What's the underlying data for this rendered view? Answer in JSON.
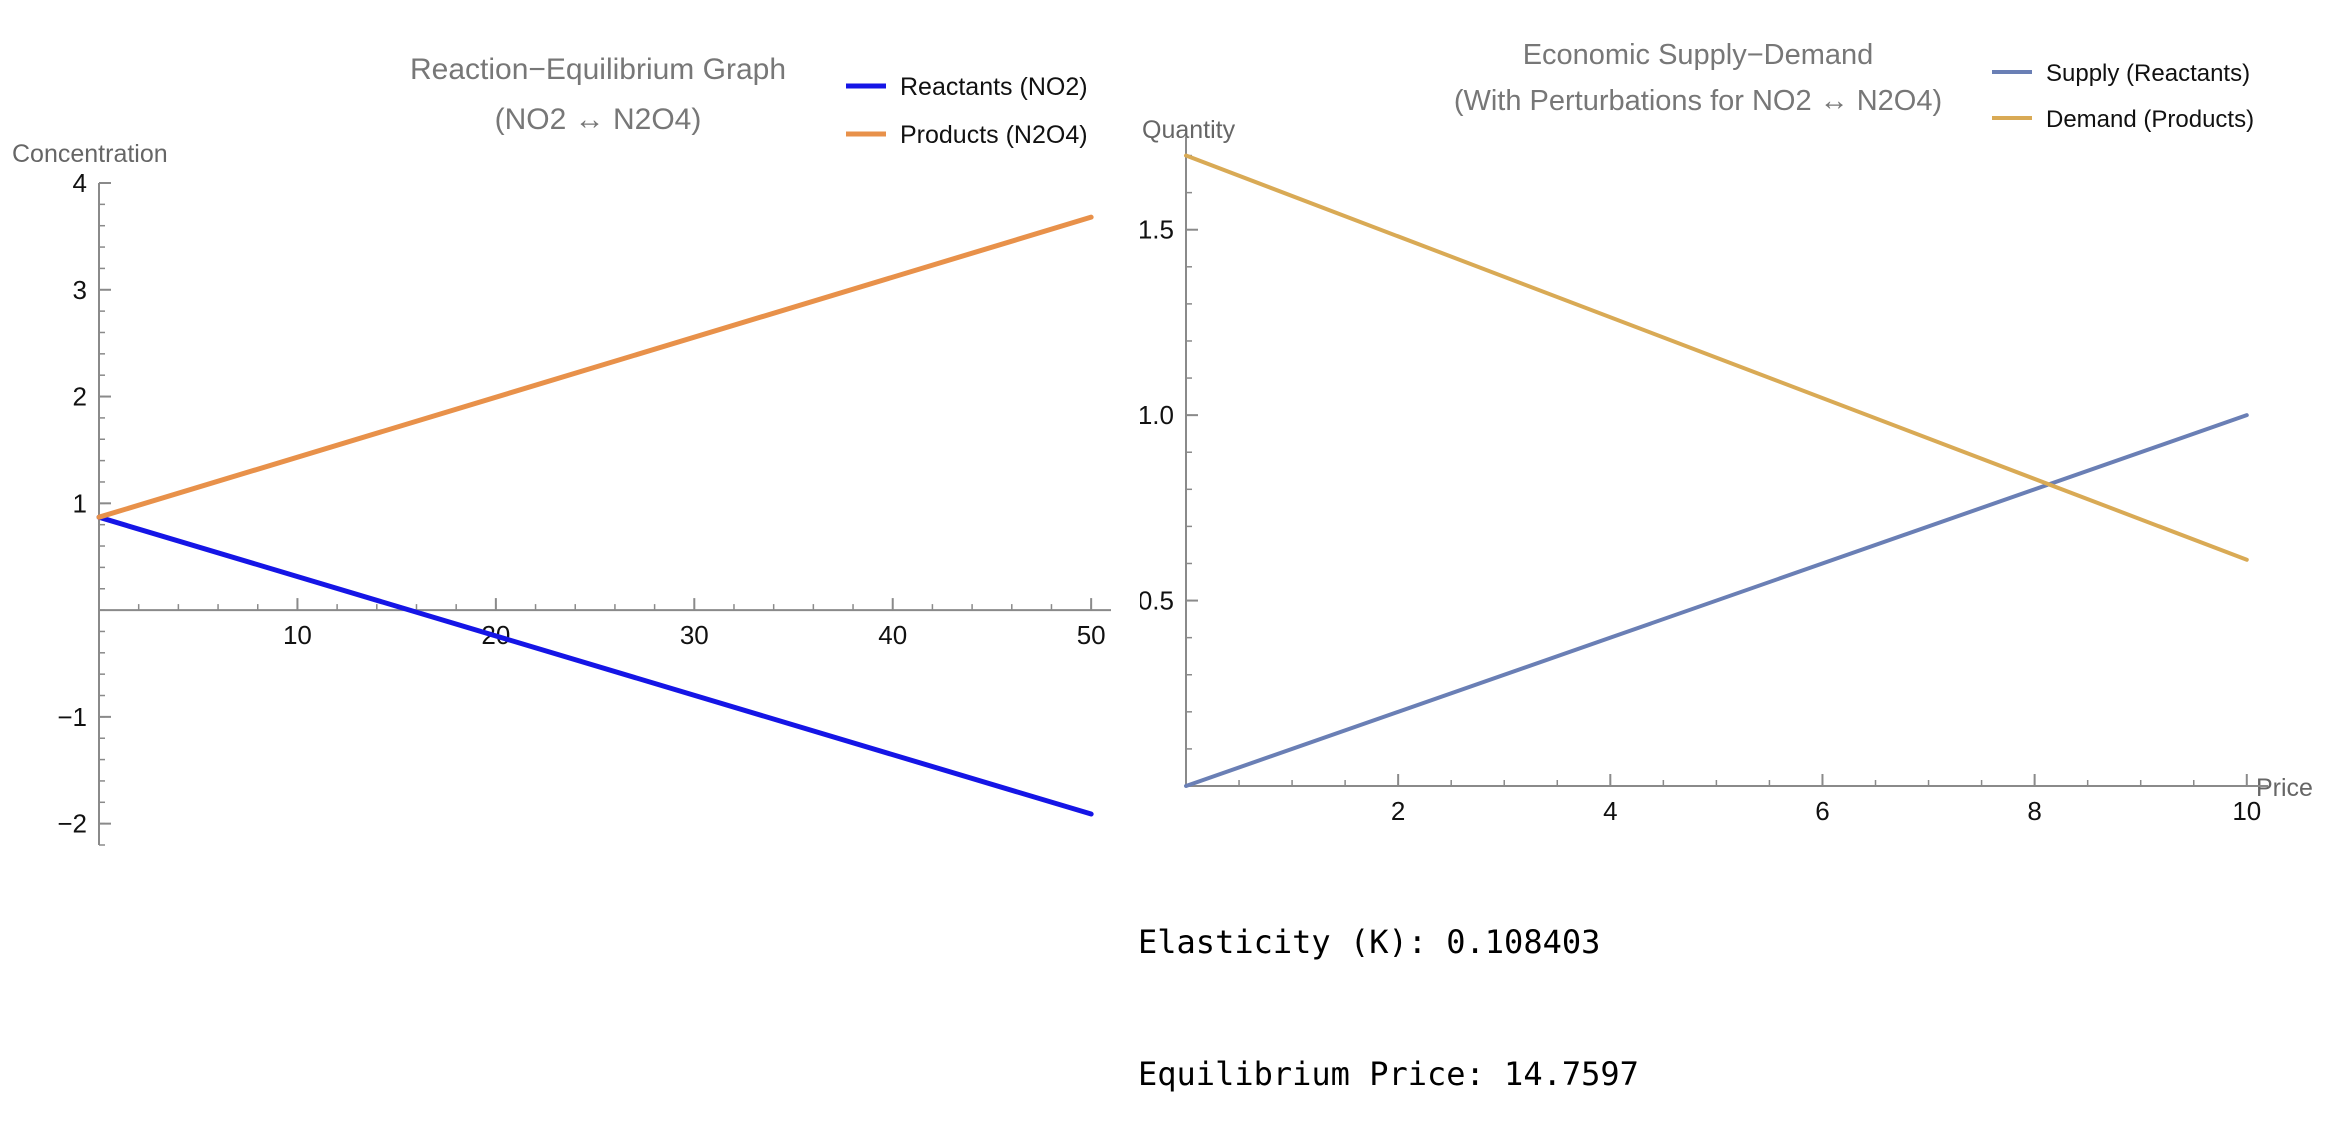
{
  "chart_data": [
    {
      "type": "line",
      "title": "Reaction−Equilibrium Graph",
      "subtitle": "(NO2 ↔ N2O4)",
      "xlabel": "",
      "ylabel": "Concentration",
      "xlim": [
        0,
        51
      ],
      "ylim": [
        -2.2,
        4.0
      ],
      "xticks": [
        10,
        20,
        30,
        40,
        50
      ],
      "xtick_labels": [
        "10",
        "20",
        "30",
        "40",
        "50"
      ],
      "yticks": [
        -2,
        -1,
        1,
        2,
        3,
        4
      ],
      "ytick_labels": [
        "−2",
        "−1",
        "1",
        "2",
        "3",
        "4"
      ],
      "grid": false,
      "legend_position": "top-right",
      "series": [
        {
          "name": "Reactants (NO2)",
          "color": "#1515e6",
          "x": [
            0,
            50
          ],
          "y": [
            0.87,
            -1.91
          ]
        },
        {
          "name": "Products (N2O4)",
          "color": "#e8914a",
          "x": [
            0,
            50
          ],
          "y": [
            0.87,
            3.68
          ]
        }
      ]
    },
    {
      "type": "line",
      "title": "Economic Supply−Demand",
      "subtitle": "(With Perturbations for NO2 ↔ N2O4)",
      "xlabel": "Price",
      "ylabel": "Quantity",
      "xlim": [
        0,
        10.2
      ],
      "ylim": [
        0,
        1.75
      ],
      "xticks": [
        2,
        4,
        6,
        8,
        10
      ],
      "xtick_labels": [
        "2",
        "4",
        "6",
        "8",
        "10"
      ],
      "yticks": [
        0.5,
        1.0,
        1.5
      ],
      "ytick_labels": [
        "0.5",
        "1.0",
        "1.5"
      ],
      "grid": false,
      "legend_position": "top-right",
      "series": [
        {
          "name": "Supply (Reactants)",
          "color": "#6a7fb5",
          "x": [
            0,
            10
          ],
          "y": [
            0.0,
            1.0
          ]
        },
        {
          "name": "Demand (Products)",
          "color": "#d9aa55",
          "x": [
            0,
            10
          ],
          "y": [
            1.7,
            0.61
          ]
        }
      ]
    }
  ],
  "readout": {
    "elasticity": "Elasticity (K): 0.108403",
    "equilibrium_price": "Equilibrium Price: 14.7597"
  }
}
